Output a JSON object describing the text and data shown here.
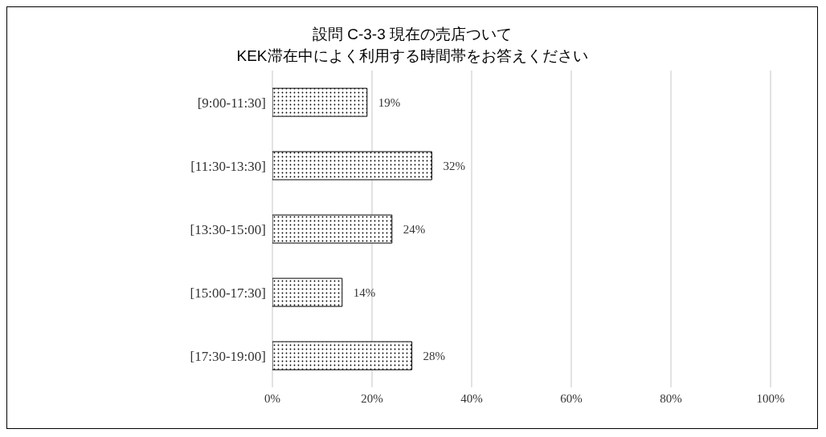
{
  "chart_data": {
    "type": "bar",
    "orientation": "horizontal",
    "title": "設問 C-3-3  現在の売店ついて\nKEK滞在中によく利用する時間帯をお答えください",
    "categories": [
      "[9:00-11:30]",
      "[11:30-13:30]",
      "[13:30-15:00]",
      "[15:00-17:30]",
      "[17:30-19:00]"
    ],
    "values": [
      19,
      32,
      24,
      14,
      28
    ],
    "value_labels": [
      "19%",
      "32%",
      "24%",
      "14%",
      "28%"
    ],
    "color": "#000000",
    "xlim": [
      0,
      100
    ],
    "xticks": [
      {
        "value": 0,
        "label": "0%"
      },
      {
        "value": 20,
        "label": "20%"
      },
      {
        "value": 40,
        "label": "40%"
      },
      {
        "value": 60,
        "label": "60%"
      },
      {
        "value": 80,
        "label": "80%"
      },
      {
        "value": 100,
        "label": "100%"
      }
    ],
    "grid": "x",
    "legend": false
  }
}
